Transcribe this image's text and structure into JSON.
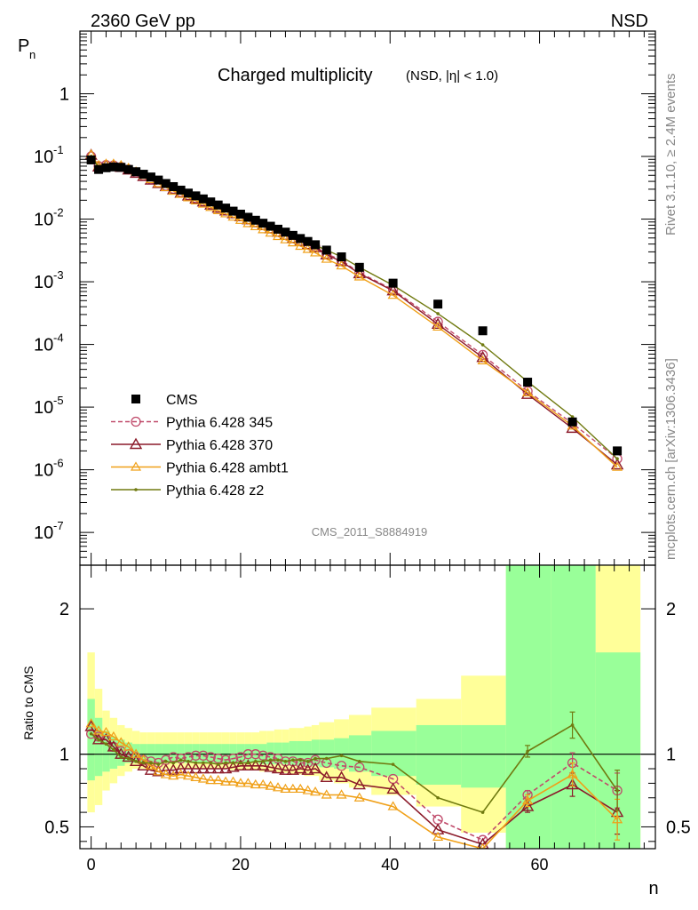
{
  "header": {
    "left_label": "2360 GeV pp",
    "right_label": "NSD",
    "title": "Charged multiplicity",
    "title_sub": "(NSD, |η| < 1.0)",
    "side_label_top": "Rivet 3.1.10, ≥ 2.4M events",
    "side_label_bottom": "mcplots.cern.ch [arXiv:1306.3436]",
    "analysis_tag": "CMS_2011_S8884919"
  },
  "colors": {
    "cms": "#000000",
    "p345": "#c04a6a",
    "p370": "#8b1a2a",
    "ambt1": "#f0a018",
    "z2": "#707a10",
    "band_green": "#99ff99",
    "band_yellow": "#ffff99"
  },
  "chart_data": [
    {
      "type": "scatter",
      "name": "main",
      "title": "Charged multiplicity",
      "ylabel": "P",
      "ylabel_sub": "n",
      "xlabel": "",
      "yscale": "log",
      "xlim": [
        -1.5,
        75.5
      ],
      "ylim": [
        3e-08,
        10
      ],
      "y_ticks": [
        {
          "value": 1e-07,
          "base": "10",
          "exp": "-7"
        },
        {
          "value": 1e-06,
          "base": "10",
          "exp": "-6"
        },
        {
          "value": 1e-05,
          "base": "10",
          "exp": "-5"
        },
        {
          "value": 0.0001,
          "base": "10",
          "exp": "-4"
        },
        {
          "value": 0.001,
          "base": "10",
          "exp": "-3"
        },
        {
          "value": 0.01,
          "base": "10",
          "exp": "-2"
        },
        {
          "value": 0.1,
          "base": "10",
          "exp": "-1"
        },
        {
          "value": 1,
          "base": "1",
          "exp": ""
        }
      ],
      "legend_position": "bottom-left",
      "x": [
        0,
        1,
        2,
        3,
        4,
        5,
        6,
        7,
        8,
        9,
        10,
        11,
        12,
        13,
        14,
        15,
        16,
        17,
        18,
        19,
        20,
        21,
        22,
        23,
        24,
        25,
        26,
        27,
        28,
        29,
        30,
        31.5,
        33.5,
        35.9,
        40.4,
        46.4,
        52.4,
        58.4,
        64.4,
        70.4
      ],
      "series": [
        {
          "name": "CMS",
          "key": "cms",
          "marker": "square",
          "values": [
            0.088,
            0.062,
            0.066,
            0.068,
            0.067,
            0.062,
            0.057,
            0.052,
            0.047,
            0.042,
            0.037,
            0.033,
            0.029,
            0.026,
            0.0235,
            0.021,
            0.0188,
            0.0168,
            0.015,
            0.0134,
            0.012,
            0.0107,
            0.0096,
            0.0086,
            0.0077,
            0.0069,
            0.0062,
            0.0055,
            0.0049,
            0.0044,
            0.0039,
            0.0032,
            0.0025,
            0.0017,
            0.00095,
            0.00044,
            0.000165,
            2.5e-05,
            5.8e-06,
            2e-06
          ]
        },
        {
          "name": "Pythia 6.428 345",
          "key": "p345",
          "marker": "circle",
          "dash": true,
          "values": [
            0.1,
            0.07,
            0.073,
            0.072,
            0.068,
            0.062,
            0.055,
            0.049,
            0.043,
            0.038,
            0.034,
            0.0305,
            0.027,
            0.0242,
            0.0216,
            0.0193,
            0.0172,
            0.0153,
            0.0137,
            0.0124,
            0.0111,
            0.0099,
            0.0089,
            0.008,
            0.0071,
            0.0063,
            0.0056,
            0.005,
            0.0045,
            0.004,
            0.0036,
            0.0028,
            0.0022,
            0.0014,
            0.00075,
            0.00023,
            6.8e-05,
            1.8e-05,
            5.5e-06,
            1.5e-06
          ]
        },
        {
          "name": "Pythia 6.428 370",
          "key": "p370",
          "marker": "triangle",
          "values": [
            0.105,
            0.068,
            0.072,
            0.071,
            0.067,
            0.061,
            0.054,
            0.048,
            0.042,
            0.037,
            0.033,
            0.0295,
            0.026,
            0.0235,
            0.021,
            0.0188,
            0.0168,
            0.015,
            0.0135,
            0.0122,
            0.011,
            0.0098,
            0.0088,
            0.0079,
            0.007,
            0.0062,
            0.0055,
            0.0049,
            0.0044,
            0.0039,
            0.0035,
            0.0027,
            0.0021,
            0.00135,
            0.00072,
            0.00021,
            6.2e-05,
            1.6e-05,
            4.6e-06,
            1.2e-06
          ]
        },
        {
          "name": "Pythia 6.428 ambt1",
          "key": "ambt1",
          "marker": "triangle-small",
          "values": [
            0.107,
            0.072,
            0.076,
            0.076,
            0.072,
            0.065,
            0.057,
            0.05,
            0.043,
            0.037,
            0.032,
            0.028,
            0.025,
            0.022,
            0.0196,
            0.0174,
            0.0154,
            0.0137,
            0.0122,
            0.0108,
            0.0096,
            0.0085,
            0.0076,
            0.0068,
            0.006,
            0.0053,
            0.0047,
            0.0042,
            0.0037,
            0.0033,
            0.0029,
            0.0023,
            0.0018,
            0.0012,
            0.00061,
            0.00019,
            5.5e-05,
            1.7e-05,
            5e-06,
            1.1e-06
          ]
        },
        {
          "name": "Pythia 6.428 z2",
          "key": "z2",
          "marker": "dot",
          "values": [
            0.1,
            0.068,
            0.071,
            0.07,
            0.066,
            0.06,
            0.054,
            0.049,
            0.044,
            0.039,
            0.035,
            0.031,
            0.0278,
            0.0248,
            0.0221,
            0.0197,
            0.0176,
            0.0157,
            0.0141,
            0.0126,
            0.0113,
            0.0101,
            0.0091,
            0.0082,
            0.0074,
            0.0066,
            0.0059,
            0.0053,
            0.0047,
            0.0042,
            0.0038,
            0.0032,
            0.0025,
            0.0017,
            0.00088,
            0.00031,
            9.85e-05,
            2.55e-05,
            7e-06,
            1.5e-06
          ]
        }
      ]
    },
    {
      "type": "scatter",
      "name": "ratio",
      "ylabel": "Ratio to CMS",
      "xlabel": "n",
      "xlim": [
        -1.5,
        75.5
      ],
      "ylim": [
        0.35,
        2.3
      ],
      "x_ticks": [
        0,
        20,
        40,
        60
      ],
      "y_ticks": [
        0.5,
        1,
        2
      ],
      "reference_line": 1,
      "bands": {
        "x": [
          -0.5,
          0.5,
          1.5,
          2.5,
          3.5,
          4.5,
          5.5,
          6.5,
          7.5,
          8.5,
          9.5,
          10.5,
          11.5,
          12.5,
          13.5,
          14.5,
          15.5,
          16.5,
          17.5,
          18.5,
          19.5,
          20.5,
          21.5,
          22.5,
          23.5,
          24.5,
          25.5,
          26.5,
          27.5,
          28.5,
          29.5,
          30.5,
          32.5,
          34.5,
          37.5,
          43.5,
          49.5,
          55.5,
          61.5,
          67.5,
          73.5
        ],
        "inner": [
          [
            0.82,
            1.38
          ],
          [
            0.85,
            1.25
          ],
          [
            0.88,
            1.16
          ],
          [
            0.9,
            1.12
          ],
          [
            0.92,
            1.1
          ],
          [
            0.94,
            1.08
          ],
          [
            0.94,
            1.07
          ],
          [
            0.94,
            1.07
          ],
          [
            0.94,
            1.07
          ],
          [
            0.94,
            1.07
          ],
          [
            0.94,
            1.07
          ],
          [
            0.94,
            1.07
          ],
          [
            0.94,
            1.07
          ],
          [
            0.94,
            1.07
          ],
          [
            0.94,
            1.07
          ],
          [
            0.94,
            1.07
          ],
          [
            0.94,
            1.07
          ],
          [
            0.94,
            1.07
          ],
          [
            0.94,
            1.07
          ],
          [
            0.94,
            1.07
          ],
          [
            0.94,
            1.07
          ],
          [
            0.94,
            1.07
          ],
          [
            0.94,
            1.07
          ],
          [
            0.93,
            1.07
          ],
          [
            0.93,
            1.08
          ],
          [
            0.93,
            1.08
          ],
          [
            0.93,
            1.08
          ],
          [
            0.92,
            1.09
          ],
          [
            0.92,
            1.09
          ],
          [
            0.92,
            1.09
          ],
          [
            0.92,
            1.1
          ],
          [
            0.91,
            1.1
          ],
          [
            0.9,
            1.11
          ],
          [
            0.88,
            1.13
          ],
          [
            0.85,
            1.16
          ],
          [
            0.79,
            1.2
          ],
          [
            0.77,
            1.2
          ],
          [
            0.3,
            2.6
          ],
          [
            0.3,
            2.6
          ],
          [
            0.3,
            1.7
          ]
        ],
        "outer": [
          [
            0.6,
            1.7
          ],
          [
            0.65,
            1.45
          ],
          [
            0.75,
            1.3
          ],
          [
            0.8,
            1.25
          ],
          [
            0.85,
            1.2
          ],
          [
            0.88,
            1.18
          ],
          [
            0.9,
            1.16
          ],
          [
            0.9,
            1.15
          ],
          [
            0.9,
            1.15
          ],
          [
            0.9,
            1.15
          ],
          [
            0.9,
            1.15
          ],
          [
            0.9,
            1.15
          ],
          [
            0.9,
            1.15
          ],
          [
            0.9,
            1.15
          ],
          [
            0.9,
            1.15
          ],
          [
            0.9,
            1.15
          ],
          [
            0.9,
            1.15
          ],
          [
            0.9,
            1.15
          ],
          [
            0.9,
            1.15
          ],
          [
            0.89,
            1.15
          ],
          [
            0.89,
            1.15
          ],
          [
            0.89,
            1.15
          ],
          [
            0.89,
            1.15
          ],
          [
            0.88,
            1.16
          ],
          [
            0.88,
            1.16
          ],
          [
            0.87,
            1.17
          ],
          [
            0.87,
            1.17
          ],
          [
            0.86,
            1.18
          ],
          [
            0.86,
            1.18
          ],
          [
            0.85,
            1.19
          ],
          [
            0.85,
            1.2
          ],
          [
            0.82,
            1.22
          ],
          [
            0.8,
            1.24
          ],
          [
            0.77,
            1.27
          ],
          [
            0.72,
            1.32
          ],
          [
            0.64,
            1.38
          ],
          [
            0.46,
            1.54
          ],
          [
            0.3,
            2.6
          ],
          [
            0.3,
            2.6
          ],
          [
            0.3,
            2.6
          ]
        ]
      },
      "series": [
        {
          "name": "Pythia 6.428 345",
          "key": "p345",
          "marker": "circle",
          "dash": true,
          "values": [
            1.14,
            1.12,
            1.1,
            1.05,
            1.02,
            1.0,
            0.98,
            0.96,
            0.95,
            0.94,
            0.96,
            0.98,
            0.97,
            0.98,
            0.99,
            0.99,
            0.98,
            0.97,
            0.96,
            0.97,
            0.98,
            1.0,
            1.0,
            0.99,
            0.98,
            0.97,
            0.95,
            0.95,
            0.94,
            0.94,
            0.96,
            0.94,
            0.92,
            0.91,
            0.83,
            0.55,
            0.41,
            0.72,
            0.94,
            0.75
          ],
          "errors": [
            0,
            0,
            0,
            0,
            0,
            0,
            0,
            0,
            0,
            0,
            0,
            0,
            0,
            0,
            0,
            0,
            0,
            0,
            0,
            0,
            0,
            0,
            0,
            0,
            0,
            0,
            0,
            0,
            0,
            0,
            0,
            0,
            0,
            0,
            0,
            0,
            0,
            0.03,
            0.07,
            0.12
          ]
        },
        {
          "name": "Pythia 6.428 370",
          "key": "p370",
          "marker": "triangle",
          "values": [
            1.19,
            1.1,
            1.1,
            1.05,
            1.0,
            0.98,
            0.95,
            0.92,
            0.89,
            0.88,
            0.89,
            0.89,
            0.9,
            0.9,
            0.9,
            0.9,
            0.9,
            0.9,
            0.9,
            0.91,
            0.92,
            0.92,
            0.92,
            0.92,
            0.91,
            0.9,
            0.89,
            0.89,
            0.9,
            0.89,
            0.9,
            0.84,
            0.84,
            0.79,
            0.76,
            0.48,
            0.38,
            0.64,
            0.79,
            0.6
          ],
          "errors": [
            0,
            0,
            0,
            0,
            0,
            0,
            0,
            0,
            0,
            0,
            0,
            0,
            0,
            0,
            0,
            0,
            0,
            0,
            0,
            0,
            0,
            0,
            0,
            0,
            0,
            0,
            0,
            0,
            0,
            0,
            0,
            0,
            0,
            0,
            0,
            0,
            0,
            0.04,
            0.08,
            0.15
          ]
        },
        {
          "name": "Pythia 6.428 ambt1",
          "key": "ambt1",
          "marker": "triangle-small",
          "values": [
            1.21,
            1.16,
            1.15,
            1.12,
            1.08,
            1.05,
            1.0,
            0.96,
            0.92,
            0.88,
            0.86,
            0.85,
            0.86,
            0.85,
            0.84,
            0.83,
            0.82,
            0.82,
            0.81,
            0.81,
            0.8,
            0.8,
            0.79,
            0.79,
            0.78,
            0.77,
            0.76,
            0.76,
            0.76,
            0.75,
            0.74,
            0.72,
            0.72,
            0.7,
            0.64,
            0.43,
            0.33,
            0.68,
            0.86,
            0.55
          ],
          "errors": [
            0,
            0,
            0,
            0,
            0,
            0,
            0,
            0,
            0,
            0,
            0,
            0,
            0,
            0,
            0,
            0,
            0,
            0,
            0,
            0,
            0,
            0,
            0,
            0,
            0,
            0,
            0,
            0,
            0,
            0,
            0,
            0,
            0,
            0,
            0,
            0,
            0,
            0.04,
            0.08,
            0.14
          ]
        },
        {
          "name": "Pythia 6.428 z2",
          "key": "z2",
          "marker": "dot",
          "values": [
            1.14,
            1.1,
            1.07,
            1.03,
            0.98,
            0.97,
            0.95,
            0.94,
            0.94,
            0.93,
            0.95,
            0.94,
            0.96,
            0.95,
            0.94,
            0.94,
            0.94,
            0.93,
            0.94,
            0.94,
            0.94,
            0.94,
            0.95,
            0.95,
            0.96,
            0.96,
            0.95,
            0.96,
            0.96,
            0.95,
            0.97,
            0.97,
            0.99,
            0.95,
            0.93,
            0.7,
            0.6,
            1.02,
            1.2,
            0.75
          ],
          "errors": [
            0,
            0,
            0,
            0,
            0,
            0,
            0,
            0,
            0,
            0,
            0,
            0,
            0,
            0,
            0,
            0,
            0,
            0,
            0,
            0,
            0,
            0,
            0,
            0,
            0,
            0,
            0,
            0,
            0,
            0,
            0,
            0,
            0,
            0,
            0,
            0,
            0,
            0.04,
            0.09,
            0.14
          ]
        }
      ]
    }
  ]
}
